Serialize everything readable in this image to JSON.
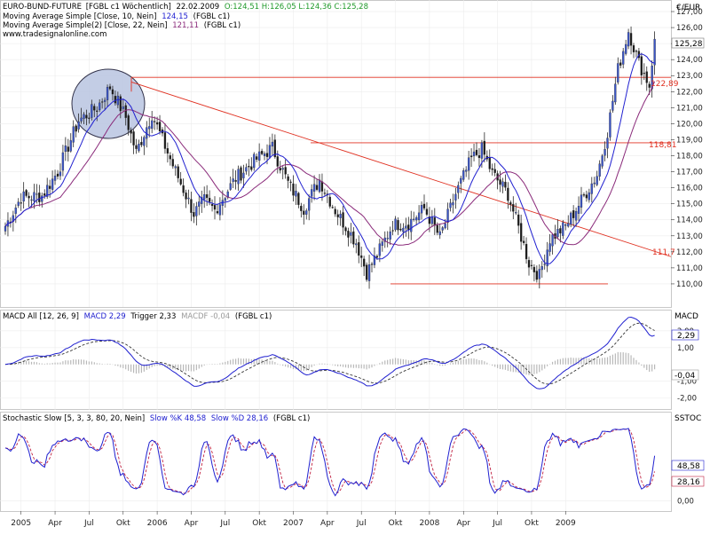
{
  "header": {
    "instrument_name": "EURO-BUND-FUTURE",
    "symbol_tag": "[FGBL c1  Wöchentlich]",
    "date": "22.02.2009",
    "ohlc": "O:124,51  H:126,05  L:124,36  C:125,28",
    "ma1_label": "Moving Average Simple [Close, 10, Nein]",
    "ma1_value": "124,15",
    "ma1_src": "(FGBL c1)",
    "ma2_label": "Moving Average Simple(2) [Close, 22, Nein]",
    "ma2_value": "121,11",
    "ma2_src": "(FGBL c1)",
    "website": "www.tradesignalonline.com",
    "axis_label": "€/EUR",
    "close_badge": "125,28"
  },
  "macd_pane": {
    "title": "MACD All [12, 26, 9]",
    "macd_text": "MACD 2,29",
    "trigger_text": "Trigger 2,33",
    "macdf_text": "MACDF -0,04",
    "src": "(FGBL c1)",
    "axis_label": "MACD",
    "badge_macd": "2,29",
    "badge_macdf": "-0,04"
  },
  "stoch_pane": {
    "title": "Stochastic Slow [5, 3, 3, 80, 20, Nein]",
    "k_text": "Slow %K 48,58",
    "d_text": "Slow %D 28,16",
    "src": "(FGBL c1)",
    "axis_label": "SSTOC",
    "badge_k": "48,58",
    "badge_d": "28,16"
  },
  "annotations": {
    "level_1": "122,89",
    "level_2": "118,81",
    "trend_end": "111,7"
  },
  "colors": {
    "price_candles": "#2a2a2a",
    "up_candle_fill": "#3a55c8",
    "ma10": "#2020d0",
    "ma22": "#8a2a7a",
    "trendline": "#e03020",
    "macd_line": "#2020d0",
    "signal_line": "#333333",
    "histogram": "#b8b8b8",
    "stoch_k": "#2020d0",
    "stoch_d": "#c02040",
    "highlight_ellipse_fill": "#b8c4e0"
  },
  "chart_data": [
    {
      "type": "candlestick",
      "ylim": [
        109,
        127.5
      ],
      "y_ticks": [
        "110,00",
        "111,00",
        "112,00",
        "113,00",
        "114,00",
        "115,00",
        "116,00",
        "117,00",
        "118,00",
        "119,00",
        "120,00",
        "121,00",
        "122,00",
        "123,00",
        "124,00",
        "125,00",
        "126,00",
        "127,00"
      ],
      "x_ticks": [
        "2005",
        "Apr",
        "Jul",
        "Okt",
        "2006",
        "Apr",
        "Jul",
        "Okt",
        "2007",
        "Apr",
        "Jul",
        "Okt",
        "2008",
        "Apr",
        "Jul",
        "Okt",
        "2009"
      ],
      "weekly_close_keypoints": [
        [
          0,
          113.6
        ],
        [
          6,
          115.4
        ],
        [
          14,
          115.5
        ],
        [
          20,
          117.0
        ],
        [
          28,
          120.2
        ],
        [
          35,
          121.0
        ],
        [
          40,
          122.3
        ],
        [
          46,
          120.4
        ],
        [
          50,
          118.2
        ],
        [
          56,
          120.6
        ],
        [
          64,
          117.4
        ],
        [
          72,
          114.4
        ],
        [
          76,
          115.2
        ],
        [
          80,
          114.6
        ],
        [
          88,
          116.6
        ],
        [
          96,
          117.8
        ],
        [
          102,
          118.5
        ],
        [
          108,
          116.3
        ],
        [
          114,
          114.7
        ],
        [
          120,
          116.5
        ],
        [
          126,
          114.6
        ],
        [
          134,
          112.6
        ],
        [
          138,
          110.7
        ],
        [
          142,
          111.8
        ],
        [
          148,
          113.7
        ],
        [
          154,
          113.8
        ],
        [
          160,
          114.7
        ],
        [
          166,
          112.9
        ],
        [
          172,
          115.6
        ],
        [
          178,
          117.8
        ],
        [
          182,
          118.4
        ],
        [
          186,
          116.9
        ],
        [
          192,
          115.6
        ],
        [
          196,
          113.5
        ],
        [
          200,
          111.3
        ],
        [
          204,
          110.5
        ],
        [
          208,
          112.8
        ],
        [
          214,
          113.6
        ],
        [
          220,
          115.2
        ],
        [
          226,
          116.8
        ],
        [
          230,
          119.5
        ],
        [
          234,
          123.4
        ],
        [
          238,
          125.8
        ],
        [
          242,
          123.8
        ],
        [
          246,
          122.4
        ],
        [
          248,
          125.3
        ]
      ],
      "moving_averages": [
        {
          "name": "Moving Average Simple [Close, 10, Nein]",
          "period": 10,
          "last": 124.15
        },
        {
          "name": "Moving Average Simple(2) [Close, 22, Nein]",
          "period": 22,
          "last": 121.11
        }
      ],
      "horizontal_levels": [
        122.89,
        118.81,
        110.0
      ],
      "trendline": {
        "label": "111,7",
        "from_value": 122.6,
        "to_value": 111.7
      }
    },
    {
      "type": "line",
      "title": "MACD All [12, 26, 9]",
      "ylim": [
        -2.6,
        3.1
      ],
      "y_ticks": [
        "2,00",
        "1,00",
        "-1,00",
        "-2,00"
      ],
      "series": [
        {
          "name": "MACD",
          "last": 2.29
        },
        {
          "name": "Trigger",
          "last": 2.33
        },
        {
          "name": "MACDF",
          "last": -0.04
        }
      ]
    },
    {
      "type": "line",
      "title": "Stochastic Slow [5, 3, 3, 80, 20, Nein]",
      "ylim": [
        -12,
        112
      ],
      "y_ticks": [
        "0,00"
      ],
      "series": [
        {
          "name": "Slow %K",
          "last": 48.58
        },
        {
          "name": "Slow %D",
          "last": 28.16
        }
      ]
    }
  ]
}
